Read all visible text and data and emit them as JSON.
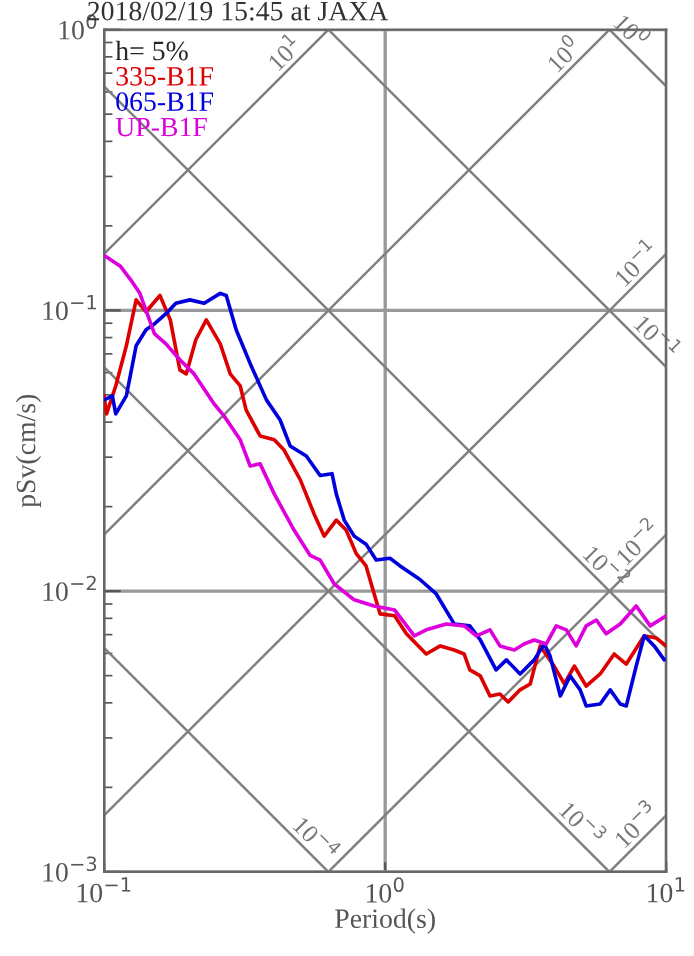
{
  "chart_data": {
    "type": "line",
    "title": "2018/02/19 15:45 at JAXA",
    "xlabel": "Period(s)",
    "ylabel": "pSv(cm/s)",
    "legend_title": "h= 5%",
    "legend": "top left",
    "log": "xy",
    "grid": true,
    "line_style": "solid",
    "marker": "none",
    "xlim": [
      0.1,
      10
    ],
    "ylim": [
      0.001,
      1
    ],
    "xticks": [
      {
        "value": 0.1,
        "label": "10$^{−1}$"
      },
      {
        "value": 1,
        "label": "10$^{0}$"
      },
      {
        "value": 10,
        "label": "10$^{1}$"
      }
    ],
    "yticks": [
      {
        "value": 0.001,
        "label": "10$^{−3}$"
      },
      {
        "value": 0.01,
        "label": "10$^{−2}$"
      },
      {
        "value": 0.1,
        "label": "10$^{−1}$"
      },
      {
        "value": 1,
        "label": "10$^{0}$"
      }
    ],
    "annotations": [
      {
        "text": "10$^{1}$",
        "x": 0.477,
        "y": 0.759
      },
      {
        "text": "10$^{0}$",
        "x": 4.7,
        "y": 0.75
      },
      {
        "text": "10$^{−1}$",
        "x": 8.5,
        "y": 0.135
      },
      {
        "text": "10$^{−2}$",
        "x": 8.6,
        "y": 0.0137
      },
      {
        "text": "10$^{−3}$",
        "x": 8.5,
        "y": 0.00135
      },
      {
        "text": "10$^{0}$",
        "x": 6.9,
        "y": 0.91
      },
      {
        "text": "10$^{−1}$",
        "x": 8.5,
        "y": 0.074
      },
      {
        "text": "10$^{−2}$",
        "x": 5.6,
        "y": 0.0112
      },
      {
        "text": "10$^{−3}$",
        "x": 4.6,
        "y": 0.00137
      },
      {
        "text": "10$^{−4}$",
        "x": 0.52,
        "y": 0.00121
      }
    ],
    "series": [
      {
        "color": "#808080",
        "x": [
          0.1,
          0.628
        ],
        "values": [
          0.159,
          1
        ]
      },
      {
        "color": "#808080",
        "x": [
          0.1,
          6.28
        ],
        "values": [
          0.0159,
          1
        ]
      },
      {
        "color": "#808080",
        "x": [
          0.1,
          10
        ],
        "values": [
          0.00159,
          0.159
        ]
      },
      {
        "color": "#808080",
        "x": [
          0.628,
          10
        ],
        "values": [
          0.001,
          0.0159
        ]
      },
      {
        "color": "#808080",
        "x": [
          6.28,
          10
        ],
        "values": [
          0.001,
          0.00159
        ]
      },
      {
        "color": "#808080",
        "x": [
          6.28,
          10
        ],
        "values": [
          1,
          0.628
        ]
      },
      {
        "color": "#808080",
        "x": [
          0.628,
          10
        ],
        "values": [
          1,
          0.0628
        ]
      },
      {
        "color": "#808080",
        "x": [
          0.1,
          10
        ],
        "values": [
          0.628,
          0.00628
        ]
      },
      {
        "color": "#808080",
        "x": [
          0.1,
          6.28
        ],
        "values": [
          0.0628,
          0.001
        ]
      },
      {
        "color": "#808080",
        "x": [
          0.1,
          0.628
        ],
        "values": [
          0.00628,
          0.001
        ]
      },
      {
        "name": "335-B1F",
        "color": "#dd0000",
        "x": [
          0.1,
          0.102,
          0.11,
          0.12,
          0.13,
          0.141,
          0.158,
          0.172,
          0.186,
          0.196,
          0.212,
          0.231,
          0.259,
          0.281,
          0.305,
          0.32,
          0.359,
          0.403,
          0.437,
          0.499,
          0.559,
          0.607,
          0.67,
          0.726,
          0.789,
          0.855,
          0.914,
          0.959,
          1.08,
          1.19,
          1.4,
          1.57,
          1.76,
          1.91,
          2.0,
          2.18,
          2.36,
          2.56,
          2.74,
          3.02,
          3.28,
          3.56,
          3.99,
          4.34,
          4.71,
          5.19,
          5.82,
          6.53,
          7.21,
          8.35,
          9.21,
          10
        ],
        "values": [
          0.0496,
          0.0428,
          0.0538,
          0.0748,
          0.109,
          0.0989,
          0.113,
          0.0925,
          0.0614,
          0.0594,
          0.0786,
          0.0925,
          0.076,
          0.0594,
          0.0538,
          0.0442,
          0.0357,
          0.0346,
          0.0318,
          0.0249,
          0.0188,
          0.0157,
          0.0179,
          0.0165,
          0.0136,
          0.0123,
          0.00977,
          0.0083,
          0.00817,
          0.00705,
          0.00597,
          0.00638,
          0.00617,
          0.00597,
          0.00524,
          0.00499,
          0.00423,
          0.0043,
          0.00403,
          0.00445,
          0.00467,
          0.00638,
          0.00541,
          0.00467,
          0.00541,
          0.00459,
          0.00507,
          0.00597,
          0.0055,
          0.00693,
          0.00681,
          0.00638
        ]
      },
      {
        "name": "065-B1F",
        "color": "#0000dd",
        "x": [
          0.1,
          0.107,
          0.11,
          0.12,
          0.13,
          0.141,
          0.151,
          0.166,
          0.18,
          0.202,
          0.227,
          0.259,
          0.272,
          0.295,
          0.331,
          0.378,
          0.423,
          0.459,
          0.524,
          0.587,
          0.647,
          0.67,
          0.715,
          0.776,
          0.855,
          0.929,
          1.04,
          1.13,
          1.33,
          1.52,
          1.76,
          2.0,
          2.18,
          2.48,
          2.7,
          3.02,
          3.39,
          3.68,
          3.86,
          4.2,
          4.55,
          4.94,
          5.19,
          5.82,
          6.32,
          6.86,
          7.21,
          7.82,
          8.35,
          9.06,
          9.84
        ],
        "values": [
          0.048,
          0.0496,
          0.0428,
          0.0496,
          0.0748,
          0.0853,
          0.0895,
          0.0973,
          0.106,
          0.109,
          0.106,
          0.115,
          0.113,
          0.0853,
          0.0646,
          0.048,
          0.0407,
          0.0329,
          0.0303,
          0.0258,
          0.0262,
          0.0222,
          0.0179,
          0.0157,
          0.0147,
          0.0129,
          0.0131,
          0.0123,
          0.011,
          0.00977,
          0.00764,
          0.00752,
          0.0067,
          0.00524,
          0.00569,
          0.00507,
          0.00569,
          0.00648,
          0.00588,
          0.00423,
          0.00499,
          0.00445,
          0.0039,
          0.00396,
          0.00445,
          0.00396,
          0.0039,
          0.00541,
          0.00693,
          0.00638,
          0.00569
        ]
      },
      {
        "name": "UP-B1F",
        "color": "#dd00dd",
        "x": [
          0.1,
          0.114,
          0.124,
          0.134,
          0.139,
          0.151,
          0.166,
          0.186,
          0.209,
          0.246,
          0.267,
          0.305,
          0.331,
          0.359,
          0.403,
          0.474,
          0.541,
          0.587,
          0.659,
          0.776,
          0.914,
          1.08,
          1.27,
          1.4,
          1.65,
          1.91,
          2.11,
          2.36,
          2.56,
          2.88,
          3.12,
          3.39,
          3.74,
          4.06,
          4.41,
          4.78,
          5.19,
          5.64,
          6.11,
          6.86,
          7.82,
          8.77,
          10
        ],
        "values": [
          0.157,
          0.144,
          0.129,
          0.115,
          0.104,
          0.0826,
          0.076,
          0.0667,
          0.0594,
          0.0465,
          0.0421,
          0.0346,
          0.0279,
          0.0284,
          0.0222,
          0.0165,
          0.0134,
          0.0129,
          0.0106,
          0.00931,
          0.00885,
          0.00857,
          0.00693,
          0.00728,
          0.00764,
          0.00752,
          0.00693,
          0.00728,
          0.00638,
          0.00617,
          0.00648,
          0.0067,
          0.00648,
          0.00752,
          0.00728,
          0.00638,
          0.00752,
          0.00789,
          0.00705,
          0.00764,
          0.00885,
          0.00752,
          0.00817
        ]
      }
    ]
  }
}
